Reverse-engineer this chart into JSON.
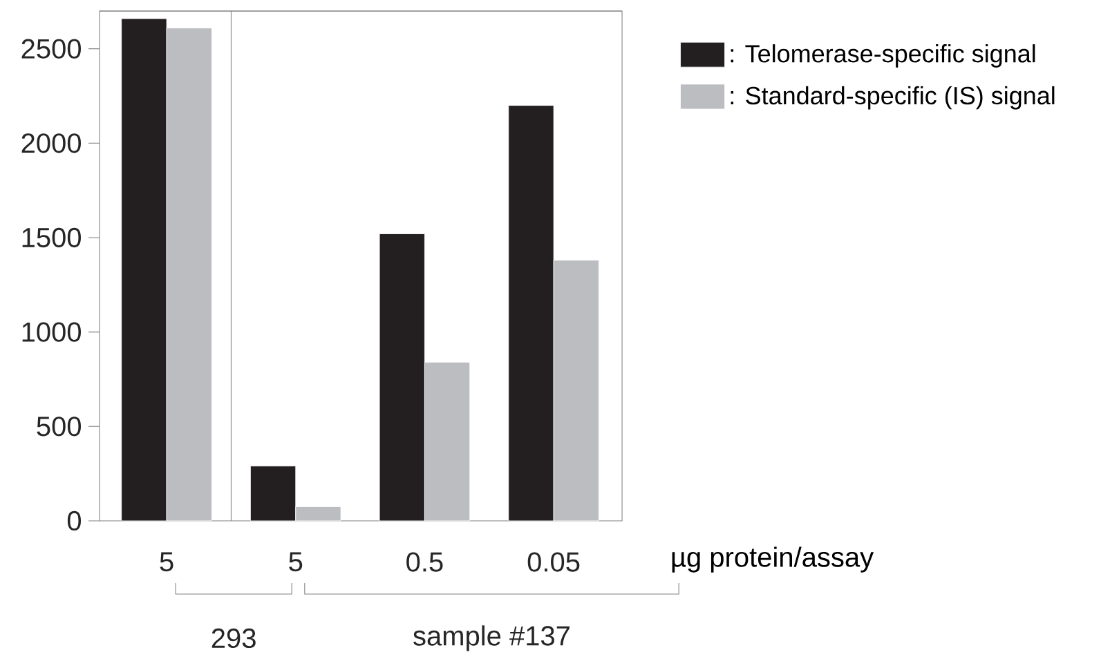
{
  "chart_data": {
    "type": "bar",
    "categories": [
      "5",
      "5",
      "0.5",
      "0.05"
    ],
    "xlabel": "µg protein/assay",
    "series": [
      {
        "name": ": Telomerase-specific signal",
        "color": "#231f20",
        "values": [
          2660,
          290,
          1520,
          2200
        ]
      },
      {
        "name": ": Standard-specific (IS) signal",
        "color": "#bcbdc0",
        "values": [
          2610,
          75,
          840,
          1380
        ]
      }
    ],
    "ylim": [
      0,
      2700
    ],
    "yticks": [
      0,
      500,
      1000,
      1500,
      2000,
      2500
    ],
    "legend": "right",
    "grid": false,
    "annotations": [
      "293",
      "sample #137"
    ]
  }
}
